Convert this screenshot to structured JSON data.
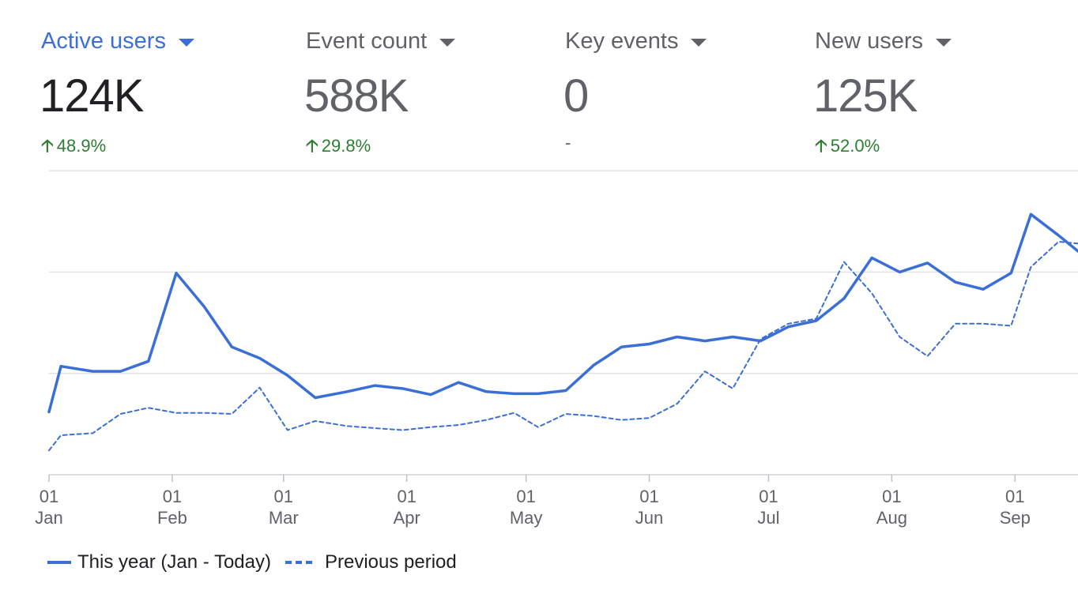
{
  "metrics": [
    {
      "label": "Active users",
      "value": "124K",
      "delta": "48.9%",
      "trend": "up"
    },
    {
      "label": "Event count",
      "value": "588K",
      "delta": "29.8%",
      "trend": "up"
    },
    {
      "label": "Key events",
      "value": "0",
      "delta": "-",
      "trend": "none"
    },
    {
      "label": "New users",
      "value": "125K",
      "delta": "52.0%",
      "trend": "up"
    }
  ],
  "legend": {
    "this_year": "This year (Jan - Today)",
    "previous": "Previous period"
  },
  "colors": {
    "accent": "#3b6fd6",
    "positive": "#2e7d32",
    "muted": "#5f6368",
    "grid": "#e3e3e3"
  },
  "chart_data": {
    "type": "line",
    "title": "",
    "xlabel": "",
    "ylabel": "",
    "x_unit": "day of year",
    "xlim": [
      1,
      260
    ],
    "ylim": [
      0,
      3
    ],
    "grid": true,
    "ticks": [
      {
        "day": "01",
        "month": "Jan",
        "x": 1
      },
      {
        "day": "01",
        "month": "Feb",
        "x": 32
      },
      {
        "day": "01",
        "month": "Mar",
        "x": 60
      },
      {
        "day": "01",
        "month": "Apr",
        "x": 91
      },
      {
        "day": "01",
        "month": "May",
        "x": 121
      },
      {
        "day": "01",
        "month": "Jun",
        "x": 152
      },
      {
        "day": "01",
        "month": "Jul",
        "x": 182
      },
      {
        "day": "01",
        "month": "Aug",
        "x": 213
      },
      {
        "day": "01",
        "month": "Sep",
        "x": 244
      }
    ],
    "series": [
      {
        "name": "This year (Jan - Today)",
        "style": "solid",
        "x": [
          1,
          4,
          12,
          19,
          26,
          33,
          40,
          47,
          54,
          61,
          68,
          76,
          83,
          90,
          97,
          104,
          111,
          118,
          124,
          131,
          138,
          145,
          152,
          159,
          166,
          173,
          180,
          187,
          194,
          201,
          208,
          215,
          222,
          229,
          236,
          243,
          248,
          255,
          260
        ],
        "y": [
          0.62,
          1.07,
          1.02,
          1.02,
          1.12,
          1.99,
          1.66,
          1.26,
          1.15,
          0.98,
          0.76,
          0.82,
          0.88,
          0.85,
          0.79,
          0.91,
          0.82,
          0.8,
          0.8,
          0.83,
          1.08,
          1.26,
          1.29,
          1.36,
          1.32,
          1.36,
          1.32,
          1.46,
          1.52,
          1.74,
          2.14,
          2.0,
          2.09,
          1.9,
          1.83,
          1.99,
          2.57,
          2.36,
          2.2
        ]
      },
      {
        "name": "Previous period",
        "style": "dashed",
        "x": [
          1,
          4,
          12,
          19,
          26,
          33,
          40,
          47,
          54,
          61,
          68,
          76,
          83,
          90,
          97,
          104,
          111,
          118,
          124,
          131,
          138,
          145,
          152,
          159,
          166,
          173,
          180,
          187,
          194,
          201,
          208,
          215,
          222,
          229,
          236,
          243,
          248,
          255,
          260
        ],
        "y": [
          0.24,
          0.39,
          0.41,
          0.6,
          0.66,
          0.61,
          0.61,
          0.6,
          0.86,
          0.44,
          0.53,
          0.48,
          0.46,
          0.44,
          0.47,
          0.49,
          0.54,
          0.61,
          0.47,
          0.6,
          0.58,
          0.54,
          0.56,
          0.7,
          1.02,
          0.85,
          1.34,
          1.49,
          1.54,
          2.1,
          1.79,
          1.36,
          1.17,
          1.49,
          1.49,
          1.47,
          2.05,
          2.3,
          2.28
        ]
      }
    ]
  }
}
